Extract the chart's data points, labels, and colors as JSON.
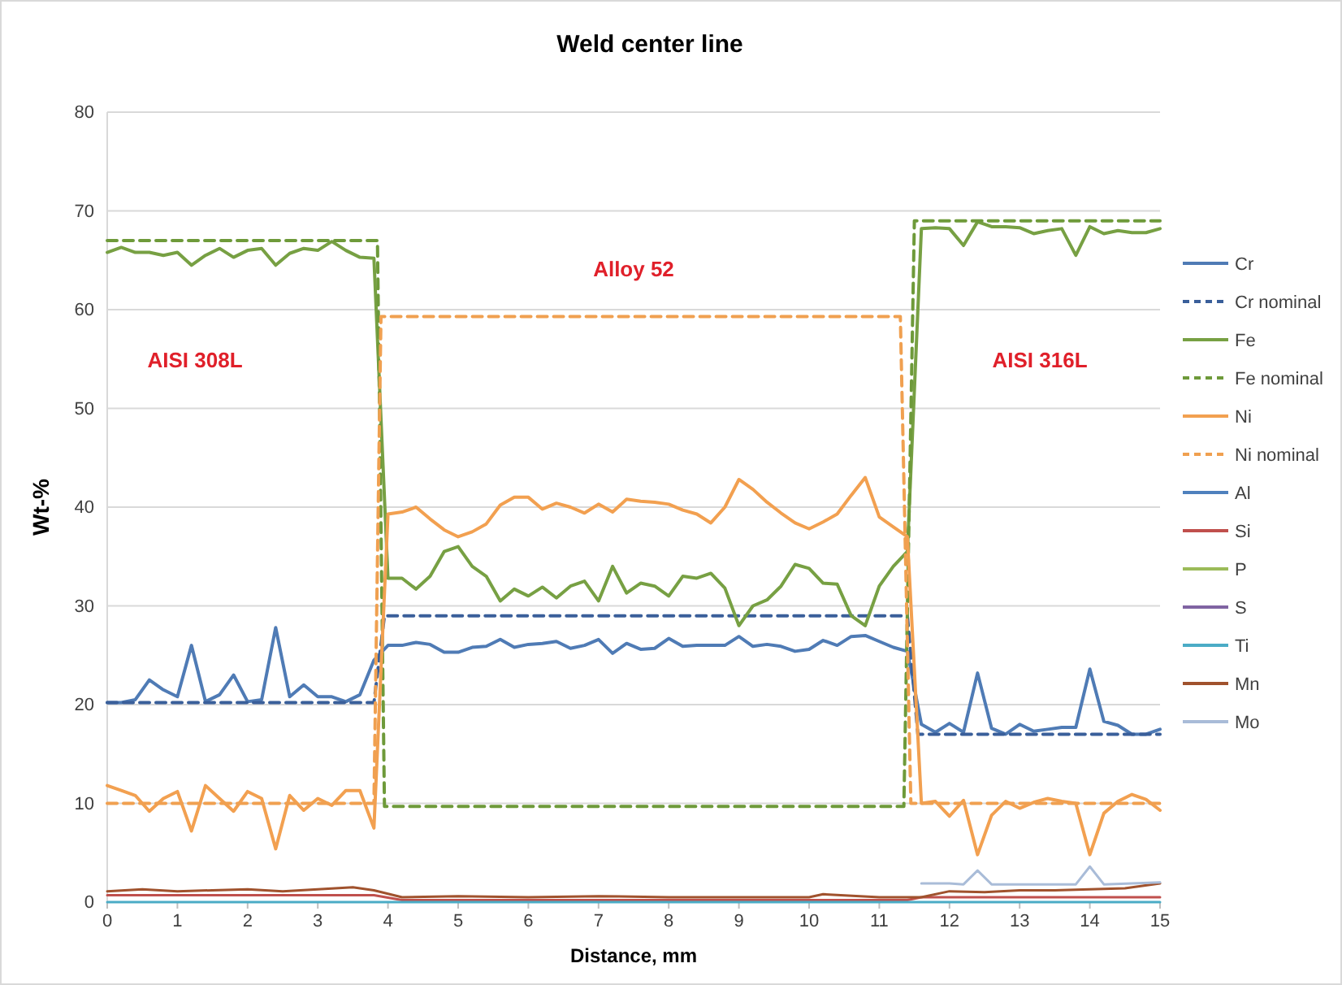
{
  "chart_data": {
    "type": "line",
    "title": "Weld center line",
    "xlabel": "Distance, mm",
    "ylabel": "Wt-%",
    "xlim": [
      0,
      15
    ],
    "xticks": [
      0,
      1,
      2,
      3,
      4,
      5,
      6,
      7,
      8,
      9,
      10,
      11,
      12,
      13,
      14,
      15
    ],
    "ylim": [
      0,
      80
    ],
    "yticks": [
      0,
      10,
      20,
      30,
      40,
      50,
      60,
      70,
      80
    ],
    "grid": "y",
    "legend": "right",
    "marker": "none",
    "line_style": "solid",
    "annotations": [
      "AISI 308L",
      "Alloy 52",
      "AISI 316L"
    ],
    "x": [
      0,
      0.2,
      0.4,
      0.6,
      0.8,
      1,
      1.2,
      1.4,
      1.6,
      1.8,
      2,
      2.2,
      2.4,
      2.6,
      2.8,
      3,
      3.2,
      3.4,
      3.6,
      3.8,
      4,
      4.2,
      4.4,
      4.6,
      4.8,
      5,
      5.2,
      5.4,
      5.6,
      5.8,
      6,
      6.2,
      6.4,
      6.6,
      6.8,
      7,
      7.2,
      7.4,
      7.6,
      7.8,
      8,
      8.2,
      8.4,
      8.6,
      8.8,
      9,
      9.2,
      9.4,
      9.6,
      9.8,
      10,
      10.2,
      10.4,
      10.6,
      10.8,
      11,
      11.2,
      11.4,
      11.6,
      11.8,
      12,
      12.2,
      12.4,
      12.6,
      12.8,
      13,
      13.2,
      13.4,
      13.6,
      13.8,
      14,
      14.2,
      14.4,
      14.6,
      14.8,
      15
    ],
    "series": [
      {
        "name": "Cr",
        "color": "#4f7bb5",
        "values": [
          20.2,
          20.2,
          20.5,
          22.5,
          21.5,
          20.8,
          26,
          20.3,
          21,
          23,
          20.3,
          20.5,
          27.8,
          20.8,
          22,
          20.8,
          20.8,
          20.3,
          21,
          24.5,
          26,
          26,
          26.3,
          26.1,
          25.3,
          25.3,
          25.8,
          25.9,
          26.6,
          25.8,
          26.1,
          26.2,
          26.4,
          25.7,
          26,
          26.6,
          25.2,
          26.2,
          25.6,
          25.7,
          26.7,
          25.9,
          26,
          26,
          26,
          26.9,
          25.9,
          26.1,
          25.9,
          25.4,
          25.6,
          26.5,
          26,
          26.9,
          27,
          26.4,
          25.8,
          25.4,
          18,
          17.2,
          18.1,
          17.2,
          23.2,
          17.6,
          17,
          18,
          17.3,
          17.5,
          17.7,
          17.7,
          23.6,
          18.3,
          17.9,
          17,
          17,
          17.5
        ]
      },
      {
        "name": "Cr nominal",
        "color": "#3a5f9a",
        "line_style": "dashed",
        "x": [
          0,
          3.8,
          3.95,
          11.4,
          11.55,
          15
        ],
        "values": [
          20.2,
          20.2,
          29,
          29,
          17,
          17
        ]
      },
      {
        "name": "Fe",
        "color": "#77a043",
        "values": [
          65.8,
          66.3,
          65.8,
          65.8,
          65.5,
          65.8,
          64.5,
          65.5,
          66.2,
          65.3,
          66,
          66.2,
          64.5,
          65.7,
          66.2,
          66,
          66.9,
          66,
          65.3,
          65.2,
          32.8,
          32.8,
          31.7,
          33,
          35.5,
          36,
          34,
          33,
          30.5,
          31.7,
          31,
          31.9,
          30.8,
          32,
          32.5,
          30.5,
          34,
          31.3,
          32.3,
          32,
          31,
          33,
          32.8,
          33.3,
          31.8,
          28,
          30,
          30.6,
          32,
          34.2,
          33.8,
          32.3,
          32.2,
          29,
          28,
          32,
          34,
          35.5,
          68.2,
          68.3,
          68.2,
          66.5,
          68.9,
          68.4,
          68.4,
          68.3,
          67.7,
          68,
          68.2,
          65.5,
          68.4,
          67.7,
          68,
          67.8,
          67.8,
          68.2
        ]
      },
      {
        "name": "Fe nominal",
        "color": "#6e9a3a",
        "line_style": "dashed",
        "x": [
          0,
          3.85,
          3.95,
          11.35,
          11.5,
          15
        ],
        "values": [
          67,
          67,
          9.7,
          9.7,
          69,
          69
        ]
      },
      {
        "name": "Ni",
        "color": "#f2a050",
        "values": [
          11.8,
          11.3,
          10.8,
          9.2,
          10.5,
          11.2,
          7.2,
          11.8,
          10.5,
          9.2,
          11.2,
          10.5,
          5.4,
          10.8,
          9.3,
          10.5,
          9.8,
          11.3,
          11.3,
          7.5,
          39.3,
          39.5,
          40,
          38.8,
          37.7,
          37,
          37.5,
          38.3,
          40.2,
          41,
          41,
          39.8,
          40.4,
          40,
          39.4,
          40.3,
          39.5,
          40.8,
          40.6,
          40.5,
          40.3,
          39.7,
          39.3,
          38.4,
          40,
          42.8,
          41.8,
          40.5,
          39.4,
          38.4,
          37.8,
          38.5,
          39.3,
          41.2,
          43,
          39,
          38,
          37,
          10,
          10.2,
          8.7,
          10.3,
          4.8,
          8.8,
          10.2,
          9.5,
          10.1,
          10.5,
          10.2,
          10,
          4.8,
          9,
          10.2,
          10.9,
          10.4,
          9.3
        ]
      },
      {
        "name": "Ni nominal",
        "color": "#f0a050",
        "line_style": "dashed",
        "x": [
          0,
          3.8,
          3.9,
          11.3,
          11.45,
          15
        ],
        "values": [
          10,
          10,
          59.3,
          59.3,
          10,
          10
        ]
      },
      {
        "name": "Al",
        "color": "#4f81bd",
        "values": [
          null,
          null,
          null,
          null,
          null,
          null,
          null,
          null,
          null,
          null,
          null,
          null,
          null,
          null,
          null,
          null,
          null,
          null,
          null,
          null,
          null,
          null,
          null,
          null,
          null,
          null,
          null,
          null,
          null,
          null,
          null,
          null,
          null,
          null,
          null,
          null,
          null,
          null,
          null,
          null,
          null,
          null,
          null,
          null,
          null,
          null,
          null,
          null,
          null,
          null,
          null,
          null,
          null,
          null,
          null,
          null,
          null,
          null,
          null,
          null,
          null,
          null,
          null,
          null,
          null,
          null,
          null,
          null,
          null,
          null,
          null,
          null,
          null,
          null,
          null,
          null
        ]
      },
      {
        "name": "Si",
        "color": "#c0504d",
        "x": [
          0,
          3.8,
          4.2,
          11.4,
          11.6,
          15
        ],
        "values": [
          0.7,
          0.7,
          0.2,
          0.2,
          0.5,
          0.5
        ]
      },
      {
        "name": "P",
        "color": "#9bbb59",
        "values": [
          null,
          null,
          null,
          null,
          null,
          null,
          null,
          null,
          null,
          null,
          null,
          null,
          null,
          null,
          null,
          null,
          null,
          null,
          null,
          null,
          null,
          null,
          null,
          null,
          null,
          null,
          null,
          null,
          null,
          null,
          null,
          null,
          null,
          null,
          null,
          null,
          null,
          null,
          null,
          null,
          null,
          null,
          null,
          null,
          null,
          null,
          null,
          null,
          null,
          null,
          null,
          null,
          null,
          null,
          null,
          null,
          null,
          null,
          null,
          null,
          null,
          null,
          null,
          null,
          null,
          null,
          null,
          null,
          null,
          null,
          null,
          null,
          null,
          null,
          null,
          null
        ]
      },
      {
        "name": "S",
        "color": "#8064a2",
        "values": [
          null,
          null,
          null,
          null,
          null,
          null,
          null,
          null,
          null,
          null,
          null,
          null,
          null,
          null,
          null,
          null,
          null,
          null,
          null,
          null,
          null,
          null,
          null,
          null,
          null,
          null,
          null,
          null,
          null,
          null,
          null,
          null,
          null,
          null,
          null,
          null,
          null,
          null,
          null,
          null,
          null,
          null,
          null,
          null,
          null,
          null,
          null,
          null,
          null,
          null,
          null,
          null,
          null,
          null,
          null,
          null,
          null,
          null,
          null,
          null,
          null,
          null,
          null,
          null,
          null,
          null,
          null,
          null,
          null,
          null,
          null,
          null,
          null,
          null,
          null,
          null
        ]
      },
      {
        "name": "Ti",
        "color": "#4bacc6",
        "x": [
          0,
          15
        ],
        "values": [
          0,
          0
        ]
      },
      {
        "name": "Mn",
        "color": "#a0522d",
        "x": [
          0,
          0.5,
          1,
          1.5,
          2,
          2.5,
          3,
          3.5,
          3.8,
          4.2,
          5,
          6,
          7,
          8,
          9,
          10,
          10.2,
          11,
          11.4,
          11.6,
          12,
          12.5,
          13,
          13.5,
          14,
          14.5,
          15
        ],
        "values": [
          1.1,
          1.3,
          1.1,
          1.2,
          1.3,
          1.1,
          1.3,
          1.5,
          1.2,
          0.5,
          0.6,
          0.5,
          0.6,
          0.5,
          0.5,
          0.5,
          0.8,
          0.5,
          0.5,
          0.5,
          1.1,
          1,
          1.2,
          1.2,
          1.3,
          1.4,
          1.9
        ]
      },
      {
        "name": "Mo",
        "color": "#a9bcd8",
        "x": [
          11.6,
          12,
          12.2,
          12.4,
          12.6,
          13,
          13.8,
          14,
          14.2,
          15
        ],
        "values": [
          1.9,
          1.9,
          1.8,
          3.2,
          1.8,
          1.8,
          1.8,
          3.6,
          1.8,
          2
        ]
      }
    ]
  }
}
